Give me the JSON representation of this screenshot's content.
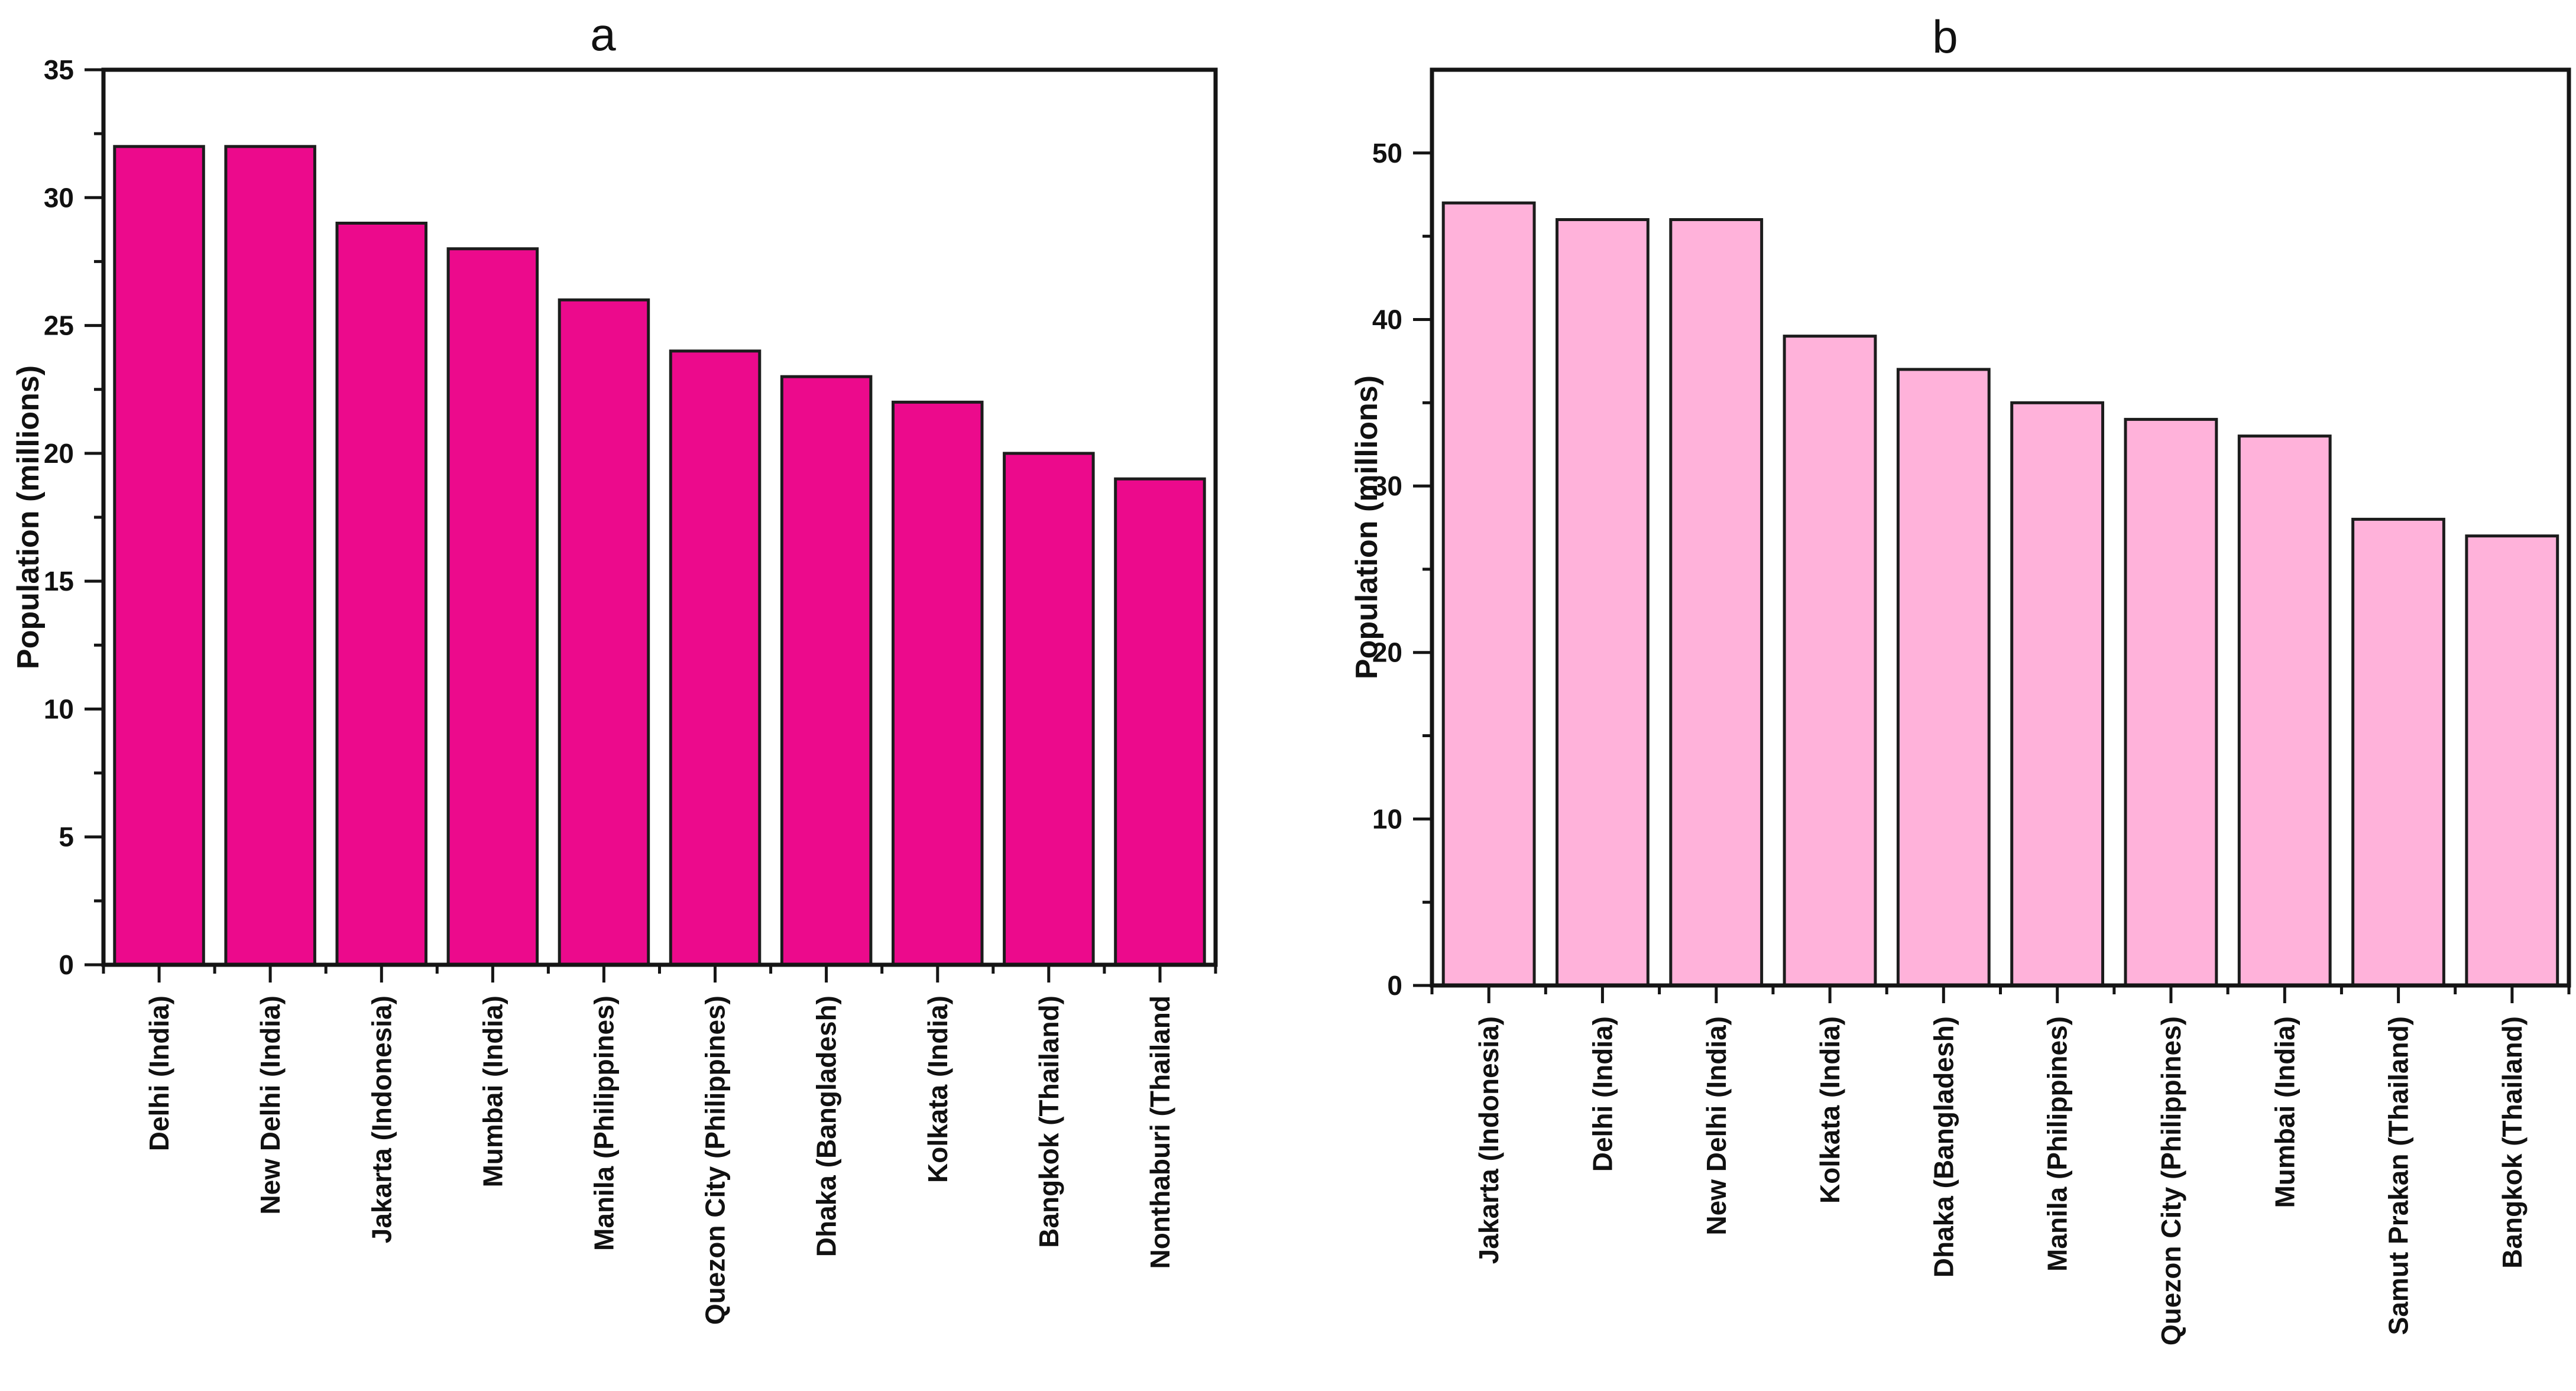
{
  "figure": {
    "background": "#ffffff",
    "panel_count": 2
  },
  "chart_data": [
    {
      "id": "a",
      "type": "bar",
      "title": "a",
      "xlabel": "",
      "ylabel": "Population (millions)",
      "categories": [
        "Delhi (India)",
        "New Delhi (India)",
        "Jakarta (Indonesia)",
        "Mumbai (India)",
        "Manila (Philippines)",
        "Quezon City (Philippines)",
        "Dhaka (Bangladesh)",
        "Kolkata (India)",
        "Bangkok (Thailand)",
        "Nonthaburi (Thailand"
      ],
      "values": [
        32,
        32,
        29,
        28,
        26,
        24,
        23,
        22,
        20,
        19
      ],
      "ylim": [
        0,
        35
      ],
      "ytick_values": [
        0,
        5,
        10,
        15,
        20,
        25,
        30,
        35
      ],
      "ytick_labels": [
        "0",
        "5",
        "10",
        "15",
        "20",
        "25",
        "30",
        "35"
      ],
      "ytick_minor_step": 2.5,
      "grid": false,
      "legend": null,
      "bar_color": "#EC0A8C",
      "bar_edge_color": "#1C1C1C",
      "axis_color": "#151515",
      "tick_label_color": "#111111"
    },
    {
      "id": "b",
      "type": "bar",
      "title": "b",
      "xlabel": "",
      "ylabel": "Population (millions)",
      "categories": [
        "Jakarta (Indonesia)",
        "Delhi (India)",
        "New Delhi (India)",
        "Kolkata (India)",
        "Dhaka (Bangladesh)",
        "Manila (Philippines)",
        "Quezon City (Philippines)",
        "Mumbai (India)",
        "Samut Prakan (Thailand)",
        "Bangkok (Thailand)"
      ],
      "values": [
        47,
        46,
        46,
        39,
        37,
        35,
        34,
        33,
        28,
        27
      ],
      "ylim": [
        0,
        55
      ],
      "ytick_values": [
        0,
        10,
        20,
        30,
        40,
        50
      ],
      "ytick_labels": [
        "0",
        "10",
        "20",
        "30",
        "40",
        "50"
      ],
      "ytick_minor_step": 5,
      "grid": false,
      "legend": null,
      "bar_color": "#FFB2DA",
      "bar_edge_color": "#1C1C1C",
      "axis_color": "#151515",
      "tick_label_color": "#111111"
    }
  ]
}
